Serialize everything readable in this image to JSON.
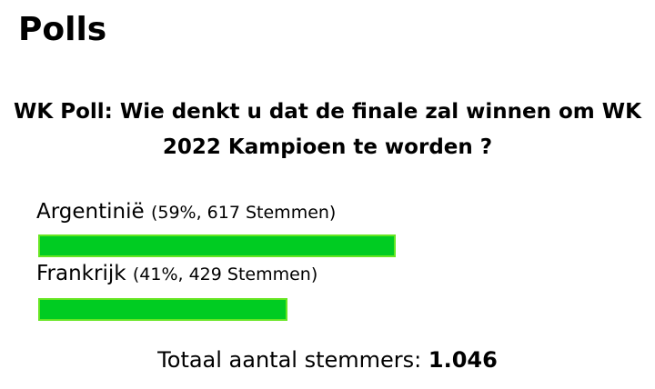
{
  "page_title": "Polls",
  "poll": {
    "question": "WK Poll: Wie denkt u dat de finale zal winnen om WK 2022 Kampioen te worden ?",
    "options": [
      {
        "name": "Argentinië",
        "meta": "(59%, 617 Stemmen)",
        "percent": 59,
        "votes": 617
      },
      {
        "name": "Frankrijk",
        "meta": "(41%, 429 Stemmen)",
        "percent": 41,
        "votes": 429
      }
    ],
    "total_label": "Totaal aantal stemmers:",
    "total_value": "1.046",
    "bar_color": "#00cc22",
    "bar_border_color": "#66e622"
  }
}
